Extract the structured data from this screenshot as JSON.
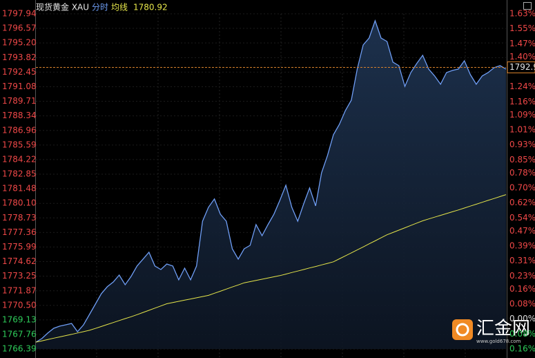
{
  "chart_data": {
    "type": "line",
    "title": "现货黄金 XAU",
    "ylim": [
      1766.39,
      1797.94
    ],
    "yticks": [
      1797.94,
      1796.57,
      {
        "value": 1795.2,
        "label": "1795.20"
      },
      1793.82,
      1792.45,
      1791.08,
      1789.71,
      1788.34,
      1786.96,
      1785.59,
      1784.22,
      1782.85,
      1781.48,
      {
        "value": 1780.1,
        "label": "1780.10"
      },
      1778.73,
      1777.36,
      1775.99,
      1774.62,
      1773.25,
      1771.87,
      {
        "value": 1770.5,
        "label": "1770.50"
      },
      1769.13,
      1767.76,
      1766.39
    ],
    "y2lim": [
      -0.16,
      1.63
    ],
    "y2ticks": [
      {
        "value": 1.63,
        "label": "1.63%"
      },
      {
        "value": 1.55,
        "label": "1.55%"
      },
      {
        "value": 1.47,
        "label": "1.47%"
      },
      {
        "value": 1.4,
        "label": "1.40%"
      },
      {
        "value": 1.24,
        "label": "1.24%"
      },
      {
        "value": 1.16,
        "label": "1.16%"
      },
      {
        "value": 1.09,
        "label": "1.09%"
      },
      {
        "value": 1.01,
        "label": "1.01%"
      },
      {
        "value": 0.93,
        "label": "0.93%"
      },
      {
        "value": 0.85,
        "label": "0.85%"
      },
      {
        "value": 0.78,
        "label": "0.78%"
      },
      {
        "value": 0.7,
        "label": "0.70%"
      },
      {
        "value": 0.62,
        "label": "0.62%"
      },
      {
        "value": 0.54,
        "label": "0.54%"
      },
      {
        "value": 0.47,
        "label": "0.47%"
      },
      {
        "value": 0.39,
        "label": "0.39%"
      },
      {
        "value": 0.31,
        "label": "0.31%"
      },
      {
        "value": 0.23,
        "label": "0.23%"
      },
      {
        "value": 0.16,
        "label": "0.16%"
      },
      {
        "value": 0.08,
        "label": "0.08%"
      },
      {
        "value": 0,
        "label": "0.00%"
      },
      {
        "value": -0.08,
        "label": "0.08%"
      },
      {
        "value": -0.16,
        "label": "0.16%"
      }
    ],
    "grid": true,
    "last_price": 1792.9,
    "series": [
      {
        "name": "分时",
        "color": "#6f9ef5",
        "values": [
          1767.04,
          1767.37,
          1767.89,
          1768.34,
          1768.54,
          1768.67,
          1768.8,
          1768.02,
          1768.67,
          1769.64,
          1770.62,
          1771.6,
          1772.25,
          1772.7,
          1773.35,
          1772.44,
          1773.22,
          1774.2,
          1774.85,
          1775.5,
          1774.2,
          1773.87,
          1774.39,
          1774.2,
          1772.9,
          1774,
          1772.9,
          1774.2,
          1778.42,
          1779.73,
          1780.51,
          1779.08,
          1778.42,
          1775.82,
          1774.85,
          1775.82,
          1776.15,
          1778.1,
          1777.06,
          1778.1,
          1779.08,
          1780.38,
          1781.81,
          1779.73,
          1778.42,
          1780.05,
          1781.55,
          1779.86,
          1782.98,
          1784.6,
          1786.56,
          1787.53,
          1788.83,
          1789.81,
          1792.74,
          1795.01,
          1795.66,
          1797.29,
          1795.66,
          1795.34,
          1793.39,
          1793.06,
          1791.11,
          1792.41,
          1793.26,
          1794.04,
          1792.74,
          1792.09,
          1791.31,
          1792.41,
          1792.61,
          1792.74,
          1793.52,
          1792.22,
          1791.31,
          1792.09,
          1792.41,
          1792.87,
          1793.06,
          1792.74
        ]
      },
      {
        "name": "均线",
        "color": "#e6e64a",
        "values": [
          1767.04,
          1767.16,
          1767.28,
          1767.41,
          1767.53,
          1767.65,
          1767.77,
          1767.9,
          1768.02,
          1768.15,
          1768.33,
          1768.51,
          1768.7,
          1768.88,
          1769.07,
          1769.25,
          1769.43,
          1769.62,
          1769.83,
          1770.03,
          1770.24,
          1770.44,
          1770.65,
          1770.76,
          1770.88,
          1770.99,
          1771.1,
          1771.21,
          1771.33,
          1771.44,
          1771.64,
          1771.83,
          1772.03,
          1772.23,
          1772.42,
          1772.62,
          1772.73,
          1772.85,
          1772.96,
          1773.07,
          1773.19,
          1773.3,
          1773.44,
          1773.59,
          1773.73,
          1773.87,
          1774.02,
          1774.16,
          1774.31,
          1774.45,
          1774.6,
          1774.88,
          1775.16,
          1775.44,
          1775.72,
          1776,
          1776.29,
          1776.57,
          1776.86,
          1777.14,
          1777.36,
          1777.58,
          1777.8,
          1778.02,
          1778.24,
          1778.46,
          1778.63,
          1778.8,
          1778.97,
          1779.14,
          1779.31,
          1779.48,
          1779.66,
          1779.84,
          1780.02,
          1780.2,
          1780.38,
          1780.56,
          1780.74,
          1780.92
        ]
      }
    ],
    "watermark": {
      "name": "汇金网",
      "url": "www.gold678.com"
    }
  }
}
